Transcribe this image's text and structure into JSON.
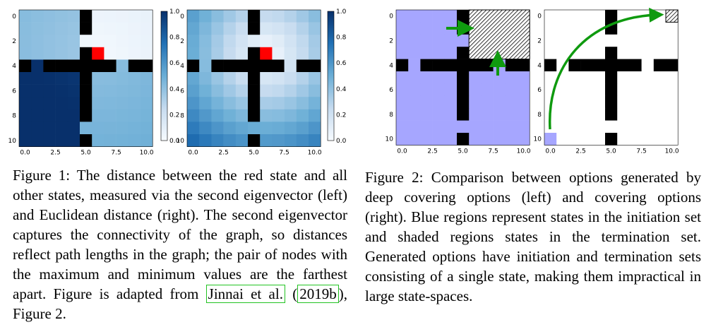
{
  "figure1": {
    "ticks_y": [
      "0",
      "2",
      "4",
      "6",
      "8",
      "10"
    ],
    "ticks_x": [
      "0.0",
      "2.5",
      "5.0",
      "7.5",
      "10.0"
    ],
    "colorbar_ticks": [
      "1.0",
      "0.8",
      "0.6",
      "0.4",
      "0.2",
      "0.0"
    ],
    "caption_prefix": "Figure 1:",
    "caption_body": "The distance between the red state and all other states, measured via the second eigenvector (left) and Euclidean distance (right). The second eigenvector captures the connectivity of the graph, so distances reflect path lengths in the graph; the pair of nodes with the maximum and minimum values are the farthest apart. Figure is adapted from",
    "citation_author": "Jinnai et al.",
    "citation_year": "2019b",
    "caption_suffix": "), Figure 2.",
    "colors": {
      "red_state": "#ff0000",
      "wall": "#000000",
      "dark_blue": "#08306b",
      "light_blue": "#c6dbef"
    }
  },
  "figure2": {
    "ticks_y": [
      "0",
      "2",
      "4",
      "6",
      "8",
      "10"
    ],
    "ticks_x": [
      "0.0",
      "2.5",
      "5.0",
      "7.5",
      "10.0"
    ],
    "caption_prefix": "Figure 2:",
    "caption_body": "Comparison between options generated by deep covering options (left) and covering options (right). Blue regions represent states in the initiation set and shaded regions states in the termination set. Generated options have initiation and termination sets consisting of a single state, making them impractical in large state-spaces.",
    "colors": {
      "initiation": "#a6a6ff",
      "arrow": "#0f9a0f"
    }
  }
}
